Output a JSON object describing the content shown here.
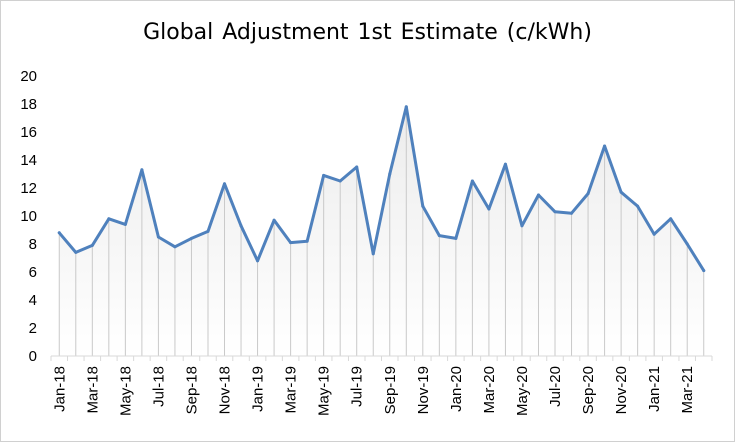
{
  "chart_data": {
    "type": "area",
    "title": "Global Adjustment 1st Estimate (c/kWh)",
    "xlabel": "",
    "ylabel": "",
    "ylim": [
      0,
      20
    ],
    "yticks": [
      0,
      2,
      4,
      6,
      8,
      10,
      12,
      14,
      16,
      18,
      20
    ],
    "grid": false,
    "legend": "none",
    "x_tick_labels": [
      "Jan-18",
      "Mar-18",
      "May-18",
      "Jul-18",
      "Sep-18",
      "Nov-18",
      "Jan-19",
      "Mar-19",
      "May-19",
      "Jul-19",
      "Sep-19",
      "Nov-19",
      "Jan-20",
      "Mar-20",
      "May-20",
      "Jul-20",
      "Sep-20",
      "Nov-20",
      "Jan-21",
      "Mar-21"
    ],
    "x": [
      "Jan-18",
      "Feb-18",
      "Mar-18",
      "Apr-18",
      "May-18",
      "Jun-18",
      "Jul-18",
      "Aug-18",
      "Sep-18",
      "Oct-18",
      "Nov-18",
      "Dec-18",
      "Jan-19",
      "Feb-19",
      "Mar-19",
      "Apr-19",
      "May-19",
      "Jun-19",
      "Jul-19",
      "Aug-19",
      "Sep-19",
      "Oct-19",
      "Nov-19",
      "Dec-19",
      "Jan-20",
      "Feb-20",
      "Mar-20",
      "Apr-20",
      "May-20",
      "Jun-20",
      "Jul-20",
      "Aug-20",
      "Sep-20",
      "Oct-20",
      "Nov-20",
      "Dec-20",
      "Jan-21",
      "Feb-21",
      "Mar-21",
      "Apr-21"
    ],
    "values": [
      8.8,
      7.4,
      7.9,
      9.8,
      9.4,
      13.3,
      8.5,
      7.8,
      8.4,
      8.9,
      12.3,
      9.3,
      6.8,
      9.7,
      8.1,
      8.2,
      12.9,
      12.5,
      13.5,
      7.3,
      13.0,
      17.8,
      10.7,
      8.6,
      8.4,
      12.5,
      10.5,
      13.7,
      9.3,
      11.5,
      10.3,
      10.2,
      11.6,
      15.0,
      11.7,
      10.7,
      8.7,
      9.8,
      8.0,
      6.1
    ],
    "colors": {
      "line": "#4f81bd",
      "drop_lines": "#c9c9c9",
      "area_top": "#ececec",
      "axis": "#d9d9d9"
    }
  }
}
